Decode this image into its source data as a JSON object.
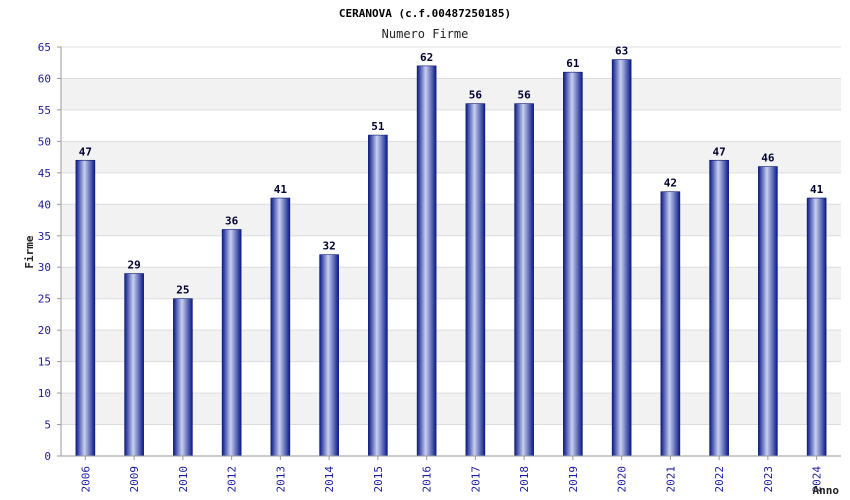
{
  "chart_data": {
    "type": "bar",
    "title": "CERANOVA (c.f.00487250185)",
    "subtitle": "Numero Firme",
    "xlabel": "Anno",
    "ylabel": "Firme",
    "ylim": [
      0,
      65
    ],
    "yticks": [
      "0",
      "5",
      "10",
      "15",
      "20",
      "25",
      "30",
      "35",
      "40",
      "45",
      "50",
      "55",
      "60",
      "65"
    ],
    "categories": [
      "2006",
      "2009",
      "2010",
      "2012",
      "2013",
      "2014",
      "2015",
      "2016",
      "2017",
      "2018",
      "2019",
      "2020",
      "2021",
      "2022",
      "2023",
      "2024"
    ],
    "values": [
      47,
      29,
      25,
      36,
      41,
      32,
      51,
      62,
      56,
      56,
      61,
      63,
      42,
      47,
      46,
      41
    ],
    "grid": true,
    "colors": {
      "bar_dark": "#0a1a8a",
      "bar_light": "#c8d0f0",
      "band": "#f2f2f2",
      "grid": "#dddddd",
      "tick_text": "#1a1aa8"
    }
  }
}
